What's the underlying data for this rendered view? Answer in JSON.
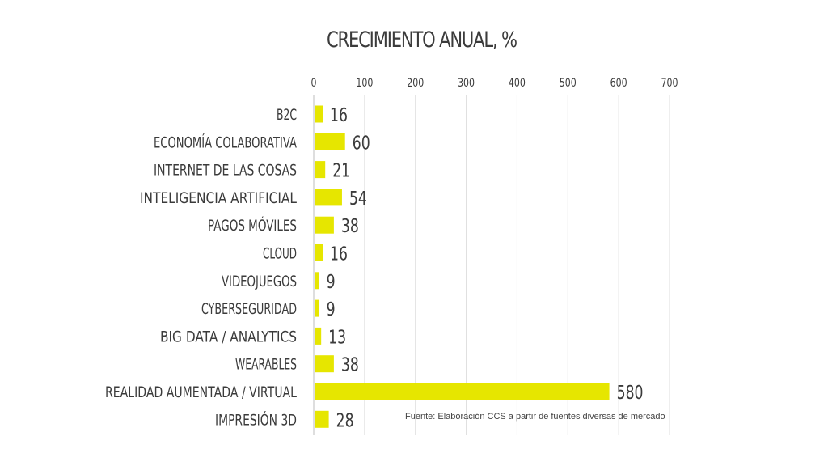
{
  "chart_data": {
    "type": "bar",
    "orientation": "horizontal",
    "title": "CRECIMIENTO ANUAL, %",
    "categories": [
      "B2C",
      "ECONOMÍA COLABORATIVA",
      "INTERNET DE LAS COSAS",
      "INTELIGENCIA ARTIFICIAL",
      "PAGOS MÓVILES",
      "CLOUD",
      "VIDEOJUEGOS",
      "CYBERSEGURIDAD",
      "BIG DATA / ANALYTICS",
      "WEARABLES",
      "REALIDAD AUMENTADA / VIRTUAL",
      "IMPRESIÓN 3D"
    ],
    "values": [
      16,
      60,
      21,
      54,
      38,
      16,
      9,
      9,
      13,
      38,
      580,
      28
    ],
    "xlim": [
      0,
      700
    ],
    "xticks": [
      0,
      100,
      200,
      300,
      400,
      500,
      600,
      700
    ],
    "axis_position": "top",
    "grid": true,
    "legend": "none",
    "bar_color": "#e6e600",
    "source": "Fuente: Elaboración CCS a partir de fuentes diversas de mercado"
  }
}
